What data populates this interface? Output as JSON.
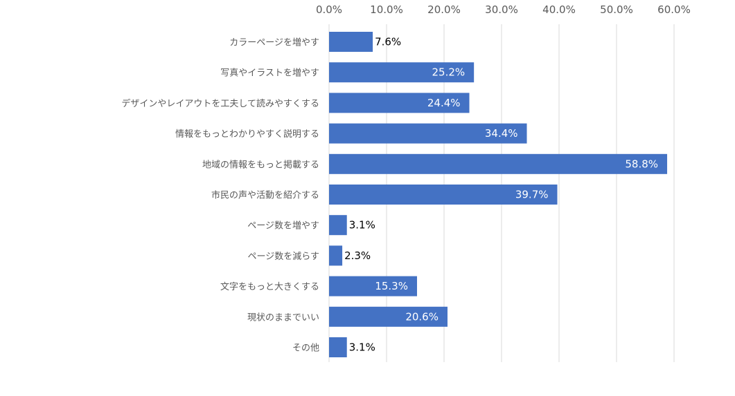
{
  "chart_data": {
    "type": "bar",
    "orientation": "horizontal",
    "title": "",
    "xlabel": "",
    "ylabel": "",
    "xlim": [
      0,
      60
    ],
    "grid": true,
    "legend": "none",
    "ticks": [
      "0.0%",
      "10.0%",
      "20.0%",
      "30.0%",
      "40.0%",
      "50.0%",
      "60.0%"
    ],
    "categories": [
      "カラーページを増やす",
      "写真やイラストを増やす",
      "デザインやレイアウトを工夫して読みやすくする",
      "情報をもっとわかりやすく説明する",
      "地域の情報をもっと掲載する",
      "市民の声や活動を紹介する",
      "ページ数を増やす",
      "ページ数を減らす",
      "文字をもっと大きくする",
      "現状のままでいい",
      "その他"
    ],
    "values": [
      7.6,
      25.2,
      24.4,
      34.4,
      58.8,
      39.7,
      3.1,
      2.3,
      15.3,
      20.6,
      3.1
    ],
    "value_labels": [
      "7.6%",
      "25.2%",
      "24.4%",
      "34.4%",
      "58.8%",
      "39.7%",
      "3.1%",
      "2.3%",
      "15.3%",
      "20.6%",
      "3.1%"
    ],
    "colors": {
      "bar": "#4472C4",
      "grid": "#D9D9D9",
      "axis_text": "#595959",
      "label_inside": "#FFFFFF",
      "label_outside": "#000000"
    }
  }
}
